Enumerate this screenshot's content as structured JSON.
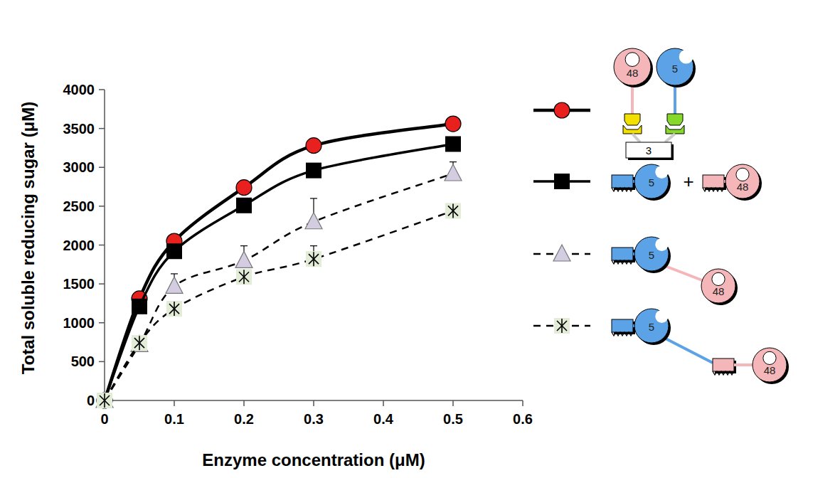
{
  "chart_data": {
    "type": "line",
    "x_label": "Enzyme concentration (μM)",
    "y_label": "Total soluble reducing sugar (μM)",
    "x": [
      0,
      0.05,
      0.1,
      0.2,
      0.3,
      0.5
    ],
    "xlim": [
      0,
      0.6
    ],
    "xticks": [
      0,
      0.1,
      0.2,
      0.3,
      0.4,
      0.5,
      0.6
    ],
    "ylim": [
      0,
      4000
    ],
    "yticks": [
      0,
      500,
      1000,
      1500,
      2000,
      2500,
      3000,
      3500,
      4000
    ],
    "grid": false,
    "legend": "right",
    "series": [
      {
        "color": "#e8211f",
        "marker": "circle",
        "line_style": "solid",
        "annotations": [
          "48",
          "5",
          "3"
        ],
        "values": [
          0,
          1310,
          2050,
          2740,
          3280,
          3560
        ]
      },
      {
        "color": "#000000",
        "marker": "square",
        "line_style": "solid",
        "annotations": [
          "5",
          "+",
          "48"
        ],
        "values": [
          0,
          1210,
          1920,
          2510,
          2960,
          3300
        ]
      },
      {
        "color": "#d4cde2",
        "marker": "triangle",
        "line_style": "dashed",
        "annotations": [
          "5",
          "48"
        ],
        "values": [
          0,
          720,
          1470,
          1800,
          2300,
          2920
        ],
        "errors": [
          0,
          50,
          160,
          190,
          300,
          150
        ]
      },
      {
        "color": "#e2ecd6",
        "marker": "asterisk",
        "line_style": "dashed",
        "annotations": [
          "5",
          "48"
        ],
        "values": [
          0,
          740,
          1180,
          1590,
          1820,
          2440
        ],
        "errors": [
          0,
          50,
          60,
          60,
          170,
          50
        ]
      }
    ]
  }
}
